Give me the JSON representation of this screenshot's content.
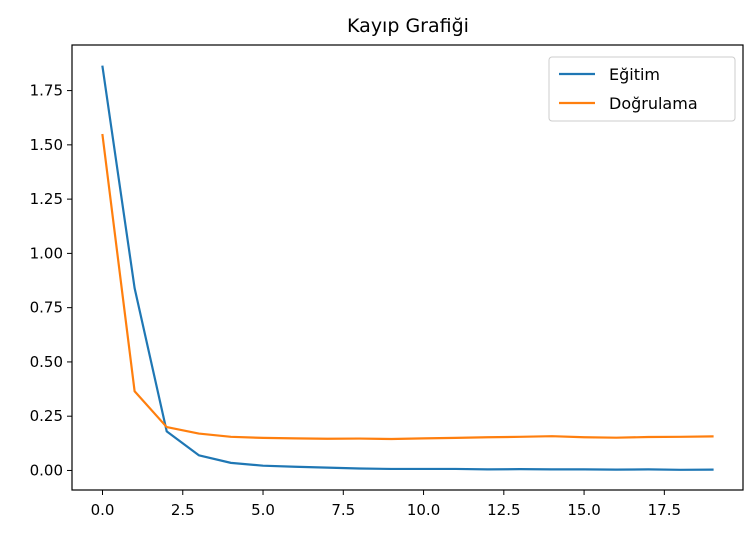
{
  "chart_data": {
    "type": "line",
    "title": "Kayıp Grafiği",
    "xlabel": "",
    "ylabel": "",
    "xlim": [
      -0.95,
      19.95
    ],
    "ylim": [
      -0.09,
      1.96
    ],
    "xticks": [
      0.0,
      2.5,
      5.0,
      7.5,
      10.0,
      12.5,
      15.0,
      17.5
    ],
    "xtick_labels": [
      "0.0",
      "2.5",
      "5.0",
      "7.5",
      "10.0",
      "12.5",
      "15.0",
      "17.5"
    ],
    "yticks": [
      0.0,
      0.25,
      0.5,
      0.75,
      1.0,
      1.25,
      1.5,
      1.75
    ],
    "ytick_labels": [
      "0.00",
      "0.25",
      "0.50",
      "0.75",
      "1.00",
      "1.25",
      "1.50",
      "1.75"
    ],
    "x": [
      0,
      1,
      2,
      3,
      4,
      5,
      6,
      7,
      8,
      9,
      10,
      11,
      12,
      13,
      14,
      15,
      16,
      17,
      18,
      19
    ],
    "series": [
      {
        "name": "Eğitim",
        "color": "#1f77b4",
        "values": [
          1.86,
          0.84,
          0.18,
          0.07,
          0.035,
          0.022,
          0.017,
          0.013,
          0.009,
          0.007,
          0.007,
          0.007,
          0.005,
          0.006,
          0.005,
          0.005,
          0.004,
          0.005,
          0.003,
          0.004
        ]
      },
      {
        "name": "Doğrulama",
        "color": "#ff7f0e",
        "values": [
          1.545,
          0.365,
          0.2,
          0.17,
          0.155,
          0.15,
          0.148,
          0.146,
          0.147,
          0.145,
          0.148,
          0.15,
          0.153,
          0.155,
          0.158,
          0.153,
          0.151,
          0.154,
          0.155,
          0.157
        ]
      }
    ],
    "grid": false,
    "legend_position": "upper-right"
  }
}
